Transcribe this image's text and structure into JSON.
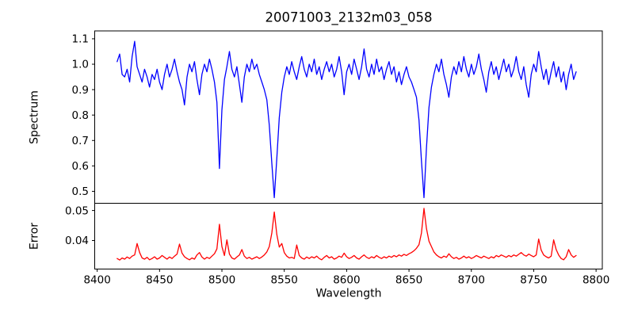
{
  "figure": {
    "background_color": "#ffffff",
    "text_color": "#000000"
  },
  "chart_data": {
    "type": "line",
    "title": "20071003_2132m03_058",
    "xlabel": "Wavelength",
    "xlim": [
      8398,
      8805
    ],
    "xticks": [
      8400,
      8450,
      8500,
      8550,
      8600,
      8650,
      8700,
      8750,
      8800
    ],
    "xtick_labels": [
      "8400",
      "8450",
      "8500",
      "8550",
      "8600",
      "8650",
      "8700",
      "8750",
      "8800"
    ],
    "x_start": 8416,
    "x_step": 2,
    "grid": false,
    "legend": "none",
    "features": {
      "absorption_lines": [
        {
          "wavelength": 8498,
          "min_flux": 0.59
        },
        {
          "wavelength": 8542,
          "min_flux": 0.475
        },
        {
          "wavelength": 8662,
          "min_flux": 0.475
        }
      ],
      "error_spikes": [
        {
          "wavelength": 8498,
          "peak": 0.0454
        },
        {
          "wavelength": 8542,
          "peak": 0.0495
        },
        {
          "wavelength": 8662,
          "peak": 0.0507
        }
      ]
    },
    "panels": [
      {
        "name": "spectrum",
        "ylabel": "Spectrum",
        "color": "#0000ff",
        "ylim": [
          0.453,
          1.131
        ],
        "yticks": [
          0.5,
          0.6,
          0.7,
          0.8,
          0.9,
          1.0,
          1.1
        ],
        "ytick_labels": [
          "0.5",
          "0.6",
          "0.7",
          "0.8",
          "0.9",
          "1.0",
          "1.1"
        ],
        "values": [
          1.01,
          1.04,
          0.96,
          0.95,
          0.98,
          0.93,
          1.03,
          1.09,
          0.99,
          0.96,
          0.93,
          0.98,
          0.95,
          0.91,
          0.96,
          0.94,
          0.98,
          0.93,
          0.9,
          0.96,
          1.0,
          0.95,
          0.98,
          1.02,
          0.97,
          0.93,
          0.9,
          0.84,
          0.95,
          1.0,
          0.97,
          1.01,
          0.94,
          0.88,
          0.96,
          1.0,
          0.97,
          1.02,
          0.98,
          0.93,
          0.85,
          0.59,
          0.82,
          0.94,
          0.99,
          1.05,
          0.98,
          0.95,
          0.99,
          0.92,
          0.85,
          0.95,
          1.0,
          0.97,
          1.02,
          0.98,
          1.0,
          0.96,
          0.93,
          0.9,
          0.86,
          0.76,
          0.61,
          0.475,
          0.63,
          0.79,
          0.89,
          0.95,
          0.99,
          0.96,
          1.01,
          0.97,
          0.94,
          0.99,
          1.03,
          0.98,
          0.95,
          1.0,
          0.97,
          1.02,
          0.96,
          0.99,
          0.94,
          0.98,
          1.01,
          0.97,
          1.0,
          0.95,
          0.98,
          1.03,
          0.97,
          0.88,
          0.97,
          1.0,
          0.96,
          1.02,
          0.98,
          0.94,
          0.99,
          1.06,
          0.98,
          0.95,
          1.0,
          0.96,
          1.02,
          0.97,
          0.99,
          0.94,
          0.98,
          1.01,
          0.96,
          0.99,
          0.93,
          0.97,
          0.92,
          0.96,
          0.99,
          0.95,
          0.93,
          0.9,
          0.87,
          0.78,
          0.62,
          0.475,
          0.67,
          0.83,
          0.91,
          0.96,
          1.0,
          0.97,
          1.02,
          0.96,
          0.92,
          0.87,
          0.95,
          0.99,
          0.96,
          1.01,
          0.97,
          1.03,
          0.98,
          0.95,
          1.0,
          0.96,
          0.99,
          1.04,
          0.98,
          0.94,
          0.89,
          0.97,
          1.01,
          0.96,
          0.99,
          0.94,
          0.98,
          1.02,
          0.97,
          1.0,
          0.95,
          0.98,
          1.03,
          0.97,
          0.94,
          0.99,
          0.92,
          0.87,
          0.96,
          1.0,
          0.97,
          1.05,
          0.99,
          0.94,
          0.98,
          0.92,
          0.97,
          1.01,
          0.95,
          0.99,
          0.93,
          0.97,
          0.9,
          0.96,
          1.0,
          0.94,
          0.97
        ]
      },
      {
        "name": "error",
        "ylabel": "Error",
        "color": "#ff0000",
        "ylim": [
          0.0305,
          0.0524
        ],
        "yticks": [
          0.04,
          0.05
        ],
        "ytick_labels": [
          "0.04",
          "0.05"
        ],
        "values": [
          0.034,
          0.0335,
          0.0342,
          0.0338,
          0.0345,
          0.034,
          0.0348,
          0.0352,
          0.039,
          0.036,
          0.0342,
          0.0338,
          0.0344,
          0.0336,
          0.034,
          0.0346,
          0.0338,
          0.0342,
          0.035,
          0.0344,
          0.0338,
          0.0345,
          0.034,
          0.0348,
          0.0355,
          0.0388,
          0.0358,
          0.0346,
          0.034,
          0.0336,
          0.0342,
          0.0338,
          0.0352,
          0.036,
          0.0345,
          0.0338,
          0.0344,
          0.034,
          0.0348,
          0.0356,
          0.0372,
          0.0454,
          0.038,
          0.035,
          0.0402,
          0.0355,
          0.0342,
          0.0338,
          0.0345,
          0.0352,
          0.037,
          0.0348,
          0.034,
          0.0344,
          0.0338,
          0.0342,
          0.0346,
          0.034,
          0.0345,
          0.0352,
          0.0362,
          0.038,
          0.0425,
          0.0495,
          0.042,
          0.0378,
          0.039,
          0.036,
          0.0348,
          0.0342,
          0.0344,
          0.034,
          0.0385,
          0.035,
          0.0342,
          0.0338,
          0.0345,
          0.034,
          0.0346,
          0.0342,
          0.0348,
          0.034,
          0.0336,
          0.0344,
          0.035,
          0.0342,
          0.0346,
          0.0338,
          0.0342,
          0.0348,
          0.0344,
          0.0358,
          0.0346,
          0.034,
          0.0344,
          0.035,
          0.0342,
          0.0338,
          0.0346,
          0.0352,
          0.0344,
          0.034,
          0.0346,
          0.0342,
          0.035,
          0.0344,
          0.034,
          0.0346,
          0.0342,
          0.0348,
          0.0344,
          0.035,
          0.0346,
          0.0352,
          0.0348,
          0.0354,
          0.035,
          0.0356,
          0.036,
          0.0366,
          0.0374,
          0.0386,
          0.0425,
          0.0507,
          0.044,
          0.0398,
          0.038,
          0.0362,
          0.0352,
          0.0346,
          0.0342,
          0.0348,
          0.0344,
          0.0356,
          0.0346,
          0.034,
          0.0344,
          0.0338,
          0.0342,
          0.0348,
          0.0342,
          0.0346,
          0.034,
          0.0344,
          0.035,
          0.0346,
          0.0342,
          0.0348,
          0.0344,
          0.034,
          0.0346,
          0.0342,
          0.035,
          0.0346,
          0.0352,
          0.0348,
          0.0344,
          0.035,
          0.0346,
          0.0352,
          0.0348,
          0.0354,
          0.036,
          0.0352,
          0.0348,
          0.0355,
          0.035,
          0.0346,
          0.0352,
          0.0405,
          0.0368,
          0.0352,
          0.0346,
          0.0342,
          0.0348,
          0.0402,
          0.037,
          0.0352,
          0.034,
          0.0336,
          0.0346,
          0.037,
          0.0352,
          0.0344,
          0.035
        ]
      }
    ]
  }
}
